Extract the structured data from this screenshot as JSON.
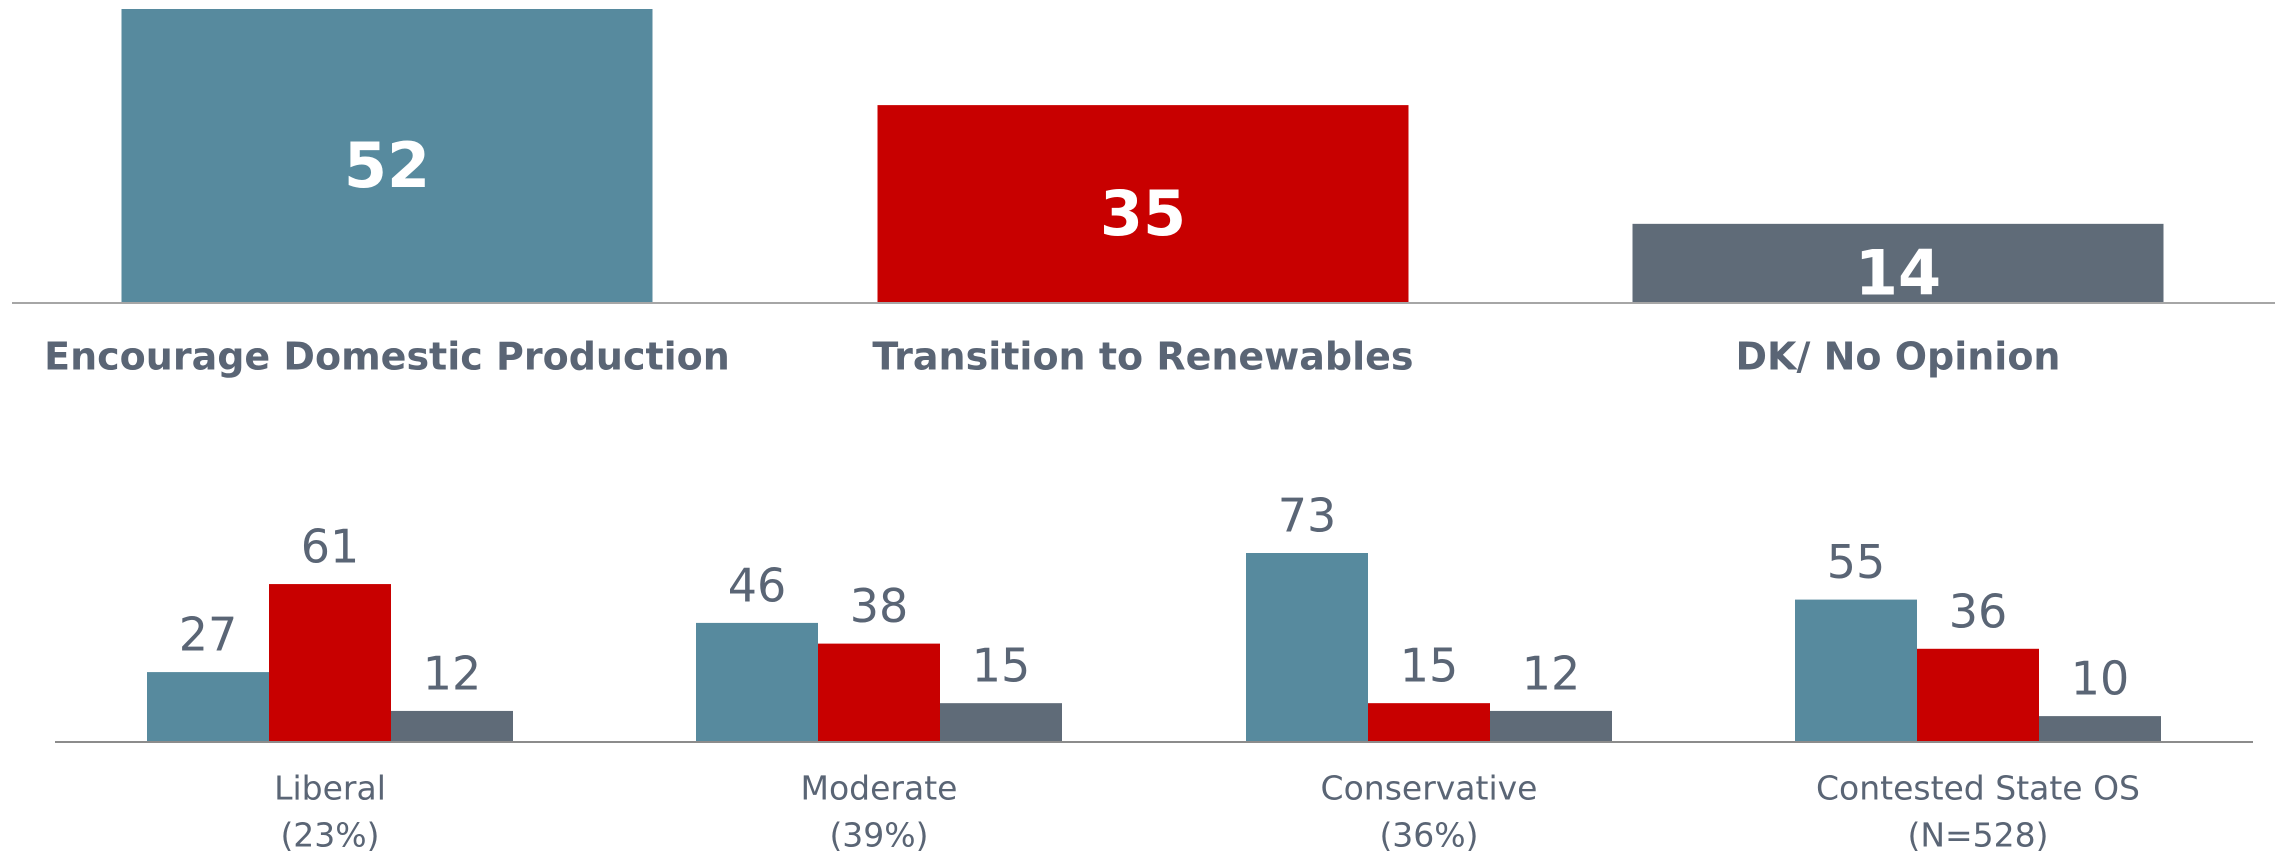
{
  "chart_data": [
    {
      "type": "bar",
      "categories": [
        "Encourage Domestic Production",
        "Transition to Renewables",
        "DK/ No Opinion"
      ],
      "values": [
        52,
        35,
        14
      ],
      "colors": [
        "#578a9e",
        "#c80000",
        "#5f6b78"
      ],
      "ylim": [
        0,
        52
      ]
    },
    {
      "type": "grouped-bar",
      "categories": [
        [
          "Liberal",
          "(23%)"
        ],
        [
          "Moderate",
          "(39%)"
        ],
        [
          "Conservative",
          "(36%)"
        ],
        [
          "Contested State OS",
          "(N=528)"
        ]
      ],
      "series": [
        {
          "color": "#578a9e",
          "values": [
            27,
            46,
            73,
            55
          ]
        },
        {
          "color": "#c80000",
          "values": [
            61,
            38,
            15,
            36
          ]
        },
        {
          "color": "#5f6b78",
          "values": [
            12,
            15,
            12,
            10
          ]
        }
      ],
      "ylim": [
        0,
        73
      ]
    }
  ]
}
